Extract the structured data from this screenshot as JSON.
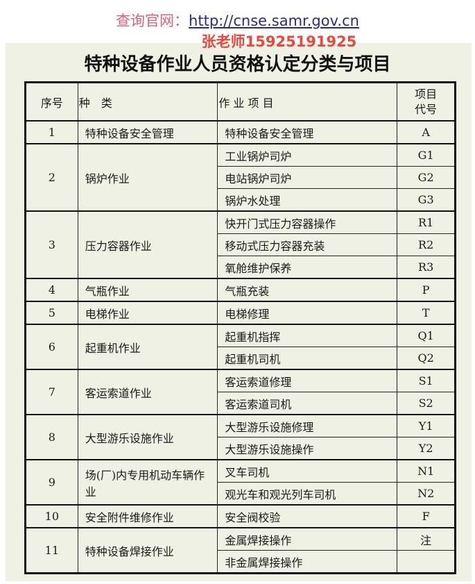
{
  "watermark": {
    "label": "查询官网：",
    "url": "http://cnse.samr.gov.cn",
    "contact": "张老师15925191925"
  },
  "title": "特种设备作业人员资格认定分类与项目",
  "table": {
    "headers": [
      "序号",
      "种　类",
      "作 业 项 目",
      "项目代号"
    ],
    "groups": [
      {
        "no": "1",
        "category": "特种设备安全管理",
        "items": [
          {
            "name": "特种设备安全管理",
            "code": "A"
          }
        ]
      },
      {
        "no": "2",
        "category": "锅炉作业",
        "items": [
          {
            "name": "工业锅炉司炉",
            "code": "G1"
          },
          {
            "name": "电站锅炉司炉",
            "code": "G2"
          },
          {
            "name": "锅炉水处理",
            "code": "G3"
          }
        ]
      },
      {
        "no": "3",
        "category": "压力容器作业",
        "items": [
          {
            "name": "快开门式压力容器操作",
            "code": "R1"
          },
          {
            "name": "移动式压力容器充装",
            "code": "R2"
          },
          {
            "name": "氧舱维护保养",
            "code": "R3"
          }
        ]
      },
      {
        "no": "4",
        "category": "气瓶作业",
        "items": [
          {
            "name": "气瓶充装",
            "code": "P"
          }
        ]
      },
      {
        "no": "5",
        "category": "电梯作业",
        "items": [
          {
            "name": "电梯修理",
            "code": "T"
          }
        ]
      },
      {
        "no": "6",
        "category": "起重机作业",
        "items": [
          {
            "name": "起重机指挥",
            "code": "Q1"
          },
          {
            "name": "起重机司机",
            "code": "Q2"
          }
        ]
      },
      {
        "no": "7",
        "category": "客运索道作业",
        "items": [
          {
            "name": "客运索道修理",
            "code": "S1"
          },
          {
            "name": "客运索道司机",
            "code": "S2"
          }
        ]
      },
      {
        "no": "8",
        "category": "大型游乐设施作业",
        "items": [
          {
            "name": "大型游乐设施修理",
            "code": "Y1"
          },
          {
            "name": "大型游乐设施操作",
            "code": "Y2"
          }
        ]
      },
      {
        "no": "9",
        "category": "场(厂)内专用机动车辆作业",
        "items": [
          {
            "name": "叉车司机",
            "code": "N1"
          },
          {
            "name": "观光车和观光列车司机",
            "code": "N2"
          }
        ]
      },
      {
        "no": "10",
        "category": "安全附件维修作业",
        "items": [
          {
            "name": "安全阀校验",
            "code": "F"
          }
        ]
      },
      {
        "no": "11",
        "category": "特种设备焊接作业",
        "items": [
          {
            "name": "金属焊接操作",
            "code": "注"
          },
          {
            "name": "非金属焊接操作",
            "code": ""
          }
        ]
      }
    ]
  }
}
